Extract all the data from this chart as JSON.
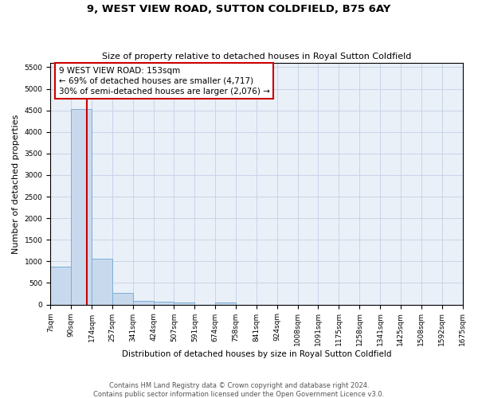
{
  "title": "9, WEST VIEW ROAD, SUTTON COLDFIELD, B75 6AY",
  "subtitle": "Size of property relative to detached houses in Royal Sutton Coldfield",
  "xlabel": "Distribution of detached houses by size in Royal Sutton Coldfield",
  "ylabel": "Number of detached properties",
  "footnote1": "Contains HM Land Registry data © Crown copyright and database right 2024.",
  "footnote2": "Contains public sector information licensed under the Open Government Licence v3.0.",
  "bar_color": "#c8d9ee",
  "bar_edge_color": "#7aaed4",
  "grid_color": "#c8d4e8",
  "annotation_box_color": "#cc0000",
  "vline_color": "#cc0000",
  "property_bin_index": 1,
  "annotation_text": "9 WEST VIEW ROAD: 153sqm\n← 69% of detached houses are smaller (4,717)\n30% of semi-detached houses are larger (2,076) →",
  "bin_labels": [
    "7sqm",
    "90sqm",
    "174sqm",
    "257sqm",
    "341sqm",
    "424sqm",
    "507sqm",
    "591sqm",
    "674sqm",
    "758sqm",
    "841sqm",
    "924sqm",
    "1008sqm",
    "1091sqm",
    "1175sqm",
    "1258sqm",
    "1341sqm",
    "1425sqm",
    "1508sqm",
    "1592sqm",
    "1675sqm"
  ],
  "bar_heights": [
    880,
    4540,
    1060,
    275,
    80,
    60,
    50,
    0,
    55,
    0,
    0,
    0,
    0,
    0,
    0,
    0,
    0,
    0,
    0,
    0
  ],
  "ylim": [
    0,
    5600
  ],
  "yticks": [
    0,
    500,
    1000,
    1500,
    2000,
    2500,
    3000,
    3500,
    4000,
    4500,
    5000,
    5500
  ],
  "background_color": "#ffffff",
  "plot_bg_color": "#eaf0f8",
  "title_fontsize": 9.5,
  "subtitle_fontsize": 8,
  "tick_fontsize": 6.5,
  "ylabel_fontsize": 8,
  "xlabel_fontsize": 7.5,
  "annotation_fontsize": 7.5,
  "footnote_fontsize": 6
}
